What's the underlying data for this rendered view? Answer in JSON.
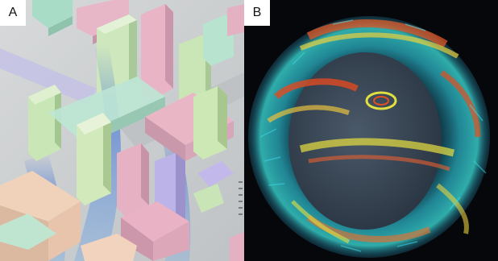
{
  "panels": [
    {
      "label": "A",
      "content": "city-buildings-airflow",
      "colors": {
        "ground": "#cacdce",
        "building_pink": "#e6b3c4",
        "building_green": "#bfe0b8",
        "building_mint": "#b9e3d2",
        "building_lavender": "#b9b2e6",
        "building_peach": "#f0cfb6",
        "flow_blue": "#4f7fd8"
      }
    },
    {
      "label": "B",
      "content": "globe-flow-visualization",
      "colors": {
        "background": "#05070a",
        "globe": "#3c4a59",
        "flow_cyan": "#2fd0e0",
        "flow_yellow": "#e8e040",
        "flow_red": "#e04020"
      }
    }
  ]
}
